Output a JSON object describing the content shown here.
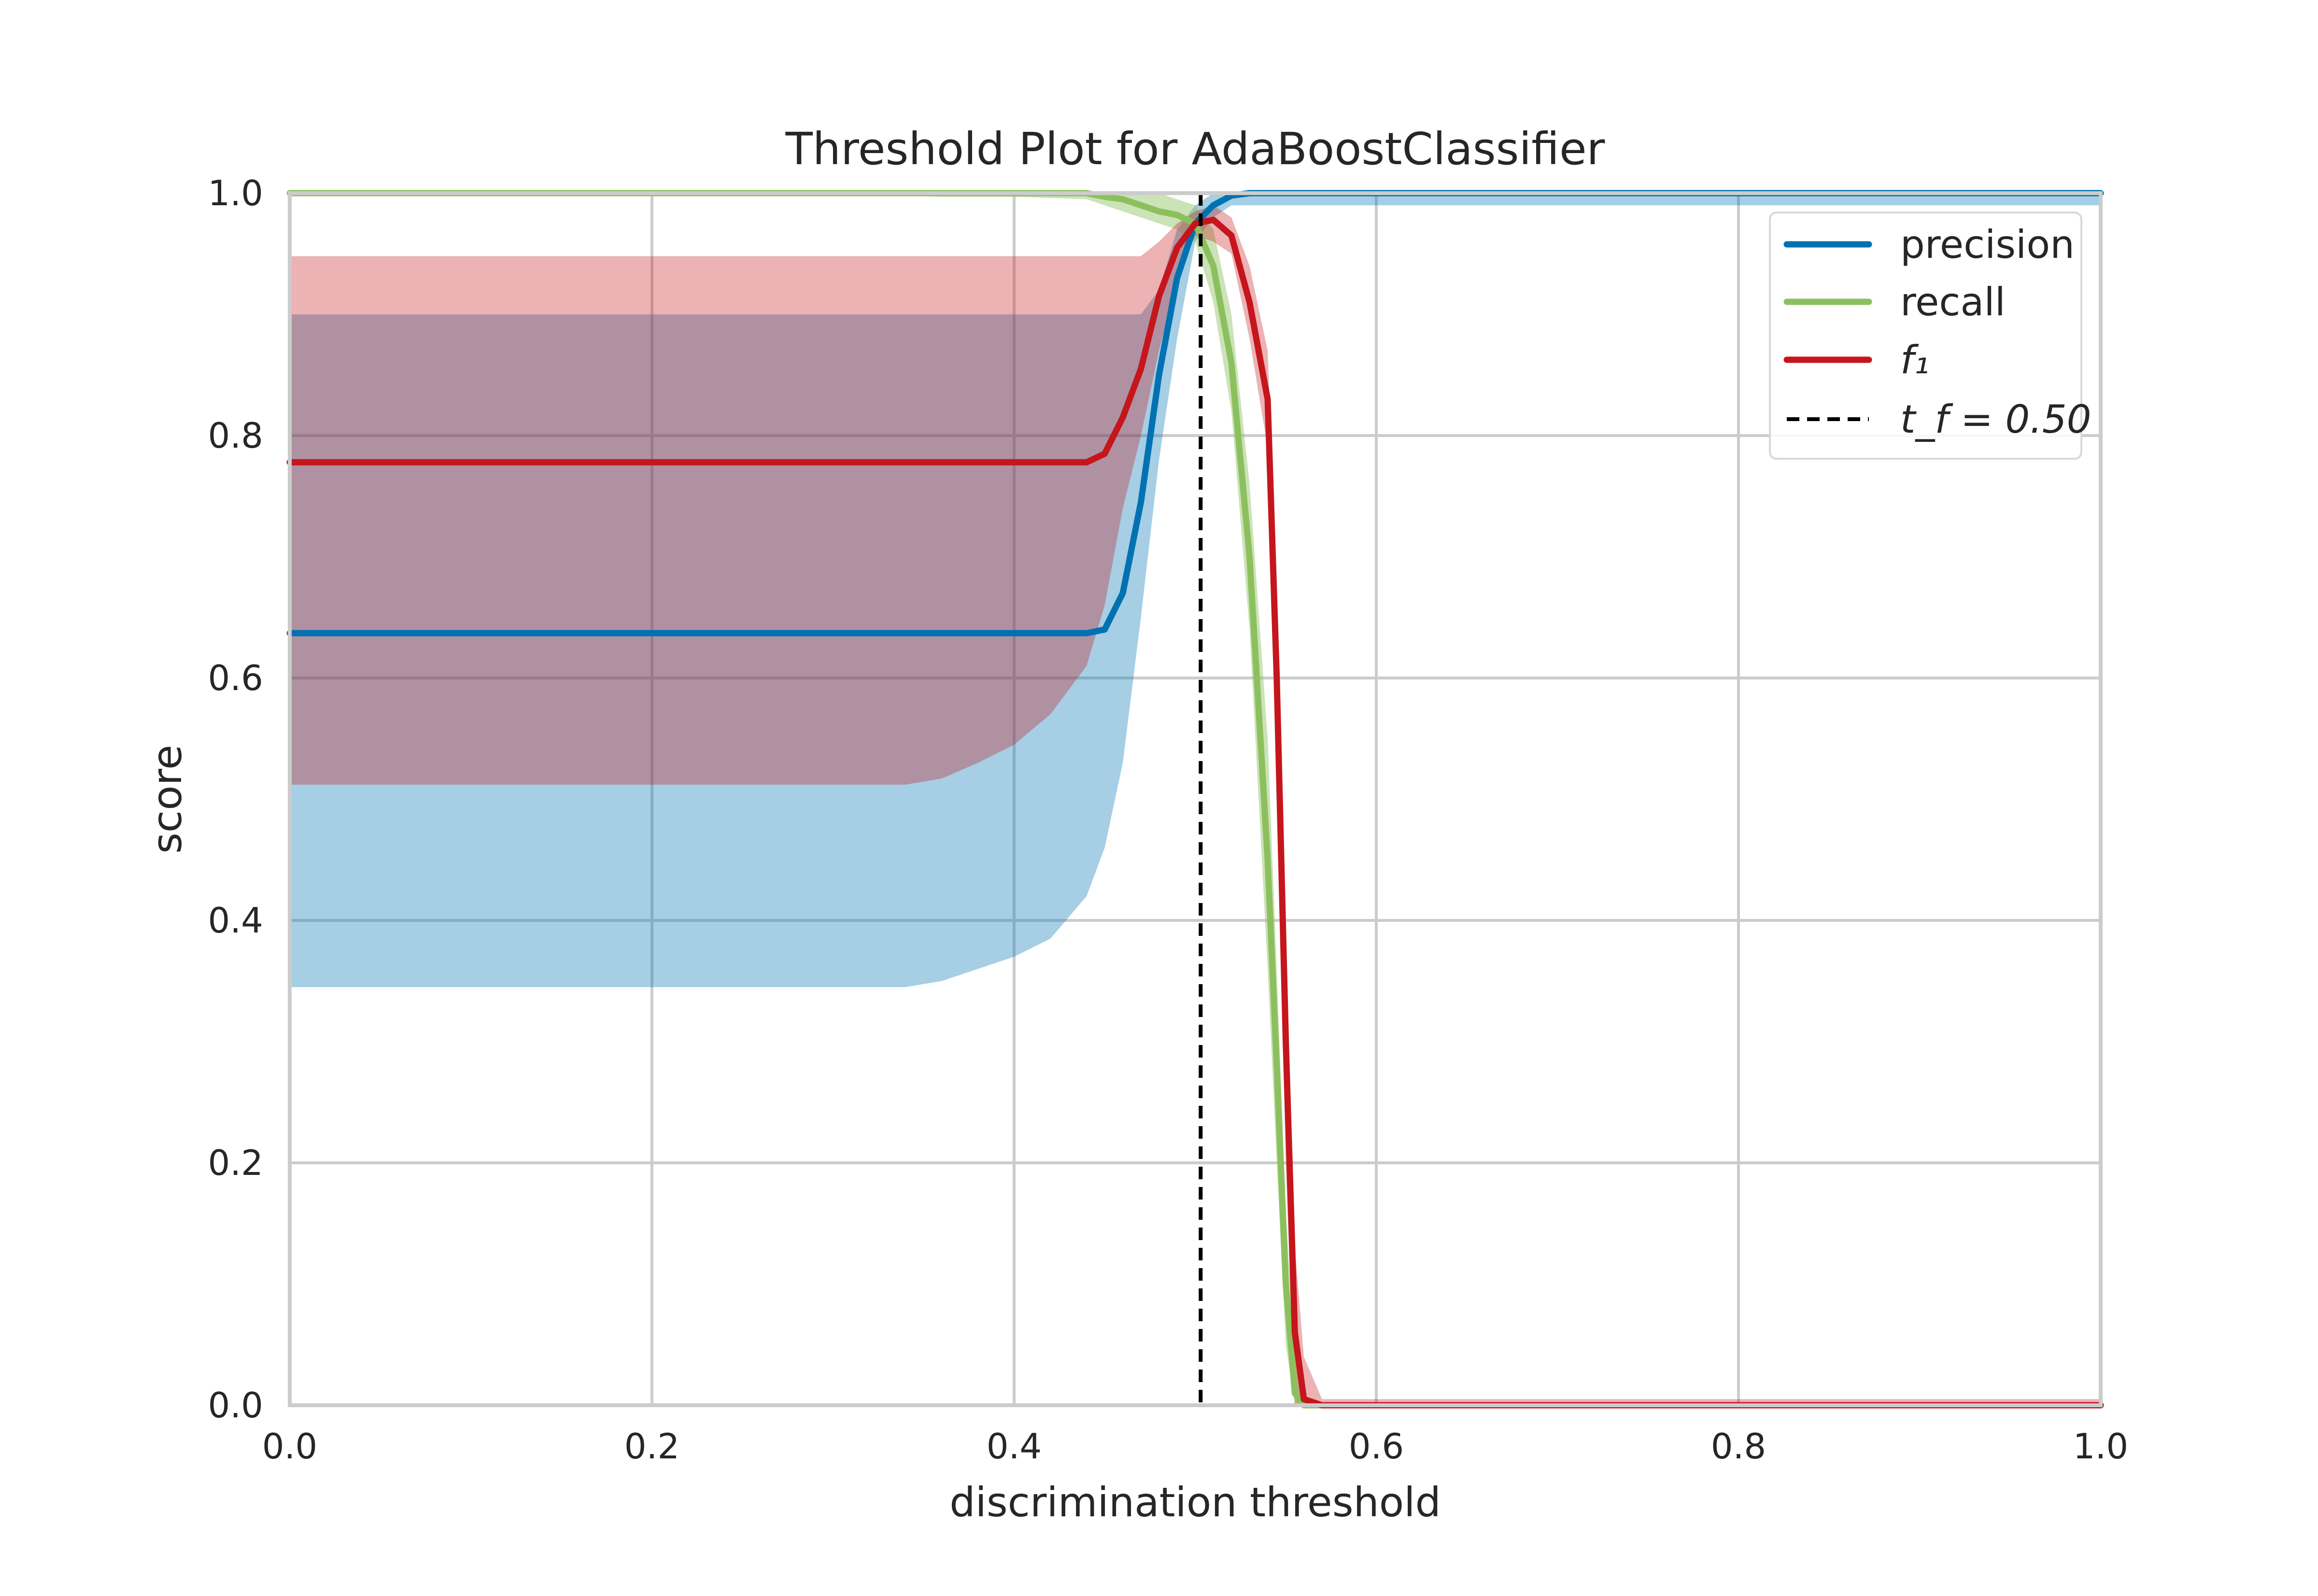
{
  "chart_data": {
    "type": "line",
    "title": "Threshold Plot for AdaBoostClassifier",
    "xlabel": "discrimination threshold",
    "ylabel": "score",
    "xlim": [
      0.0,
      1.0
    ],
    "ylim": [
      0.0,
      1.0
    ],
    "grid": true,
    "legend_position": "top-right",
    "x_ticks": [
      "0.0",
      "0.2",
      "0.4",
      "0.6",
      "0.8",
      "1.0"
    ],
    "y_ticks": [
      "0.0",
      "0.2",
      "0.4",
      "0.6",
      "0.8",
      "1.0"
    ],
    "x": [
      0.0,
      0.1,
      0.2,
      0.3,
      0.34,
      0.36,
      0.38,
      0.4,
      0.42,
      0.44,
      0.45,
      0.46,
      0.47,
      0.48,
      0.49,
      0.5,
      0.51,
      0.52,
      0.53,
      0.54,
      0.545,
      0.55,
      0.555,
      0.56,
      0.57,
      0.6,
      0.7,
      0.8,
      0.9,
      1.0
    ],
    "series": [
      {
        "name": "precision",
        "color": "#0072B2",
        "values": [
          0.637,
          0.637,
          0.637,
          0.637,
          0.637,
          0.637,
          0.637,
          0.637,
          0.637,
          0.637,
          0.64,
          0.67,
          0.745,
          0.85,
          0.93,
          0.975,
          0.99,
          0.998,
          1.0,
          1.0,
          1.0,
          1.0,
          1.0,
          1.0,
          1.0,
          1.0,
          1.0,
          1.0,
          1.0,
          1.0
        ],
        "band_upper": [
          0.9,
          0.9,
          0.9,
          0.9,
          0.9,
          0.9,
          0.9,
          0.9,
          0.9,
          0.9,
          0.9,
          0.9,
          0.9,
          0.92,
          0.97,
          0.99,
          1.0,
          1.0,
          1.0,
          1.0,
          1.0,
          1.0,
          1.0,
          1.0,
          1.0,
          1.0,
          1.0,
          1.0,
          1.0,
          1.0
        ],
        "band_lower": [
          0.345,
          0.345,
          0.345,
          0.345,
          0.345,
          0.35,
          0.36,
          0.37,
          0.385,
          0.42,
          0.46,
          0.53,
          0.65,
          0.78,
          0.88,
          0.96,
          0.98,
          0.99,
          0.99,
          0.99,
          0.99,
          0.99,
          0.99,
          0.99,
          0.99,
          0.99,
          0.99,
          0.99,
          0.99,
          0.99
        ]
      },
      {
        "name": "recall",
        "color": "#8CC05F",
        "values": [
          1.0,
          1.0,
          1.0,
          1.0,
          1.0,
          1.0,
          1.0,
          1.0,
          1.0,
          1.0,
          0.997,
          0.995,
          0.99,
          0.985,
          0.982,
          0.975,
          0.94,
          0.86,
          0.7,
          0.45,
          0.28,
          0.1,
          0.01,
          0.0,
          0.0,
          0.0,
          0.0,
          0.0,
          0.0,
          0.0
        ],
        "band_upper": [
          1.0,
          1.0,
          1.0,
          1.0,
          1.0,
          1.0,
          1.0,
          1.0,
          1.0,
          1.0,
          1.0,
          1.0,
          1.0,
          1.0,
          0.995,
          0.99,
          0.97,
          0.9,
          0.76,
          0.55,
          0.36,
          0.16,
          0.04,
          0.0,
          0.0,
          0.0,
          0.0,
          0.0,
          0.0,
          0.0
        ],
        "band_lower": [
          1.0,
          1.0,
          1.0,
          0.998,
          0.998,
          0.997,
          0.997,
          0.997,
          0.996,
          0.995,
          0.99,
          0.985,
          0.98,
          0.975,
          0.97,
          0.96,
          0.91,
          0.82,
          0.64,
          0.36,
          0.2,
          0.05,
          0.0,
          0.0,
          0.0,
          0.0,
          0.0,
          0.0,
          0.0,
          0.0
        ]
      },
      {
        "name": "f₁",
        "color": "#C4161C",
        "values": [
          0.778,
          0.778,
          0.778,
          0.778,
          0.778,
          0.778,
          0.778,
          0.778,
          0.778,
          0.778,
          0.785,
          0.815,
          0.855,
          0.915,
          0.955,
          0.975,
          0.978,
          0.965,
          0.91,
          0.83,
          0.6,
          0.3,
          0.06,
          0.005,
          0.0,
          0.0,
          0.0,
          0.0,
          0.0,
          0.0
        ],
        "band_upper": [
          0.948,
          0.948,
          0.948,
          0.948,
          0.948,
          0.948,
          0.948,
          0.948,
          0.948,
          0.948,
          0.948,
          0.948,
          0.948,
          0.96,
          0.975,
          0.985,
          0.99,
          0.98,
          0.94,
          0.87,
          0.68,
          0.4,
          0.13,
          0.04,
          0.005,
          0.005,
          0.005,
          0.005,
          0.005,
          0.005
        ],
        "band_lower": [
          0.512,
          0.512,
          0.512,
          0.512,
          0.512,
          0.517,
          0.53,
          0.545,
          0.57,
          0.61,
          0.66,
          0.74,
          0.8,
          0.87,
          0.93,
          0.965,
          0.96,
          0.95,
          0.88,
          0.79,
          0.52,
          0.2,
          0.0,
          0.0,
          0.0,
          0.0,
          0.0,
          0.0,
          0.0,
          0.0
        ]
      }
    ],
    "threshold_line": {
      "x": 0.503,
      "label": "t_f = 0.50",
      "color": "#000000",
      "style": "dashed"
    }
  }
}
